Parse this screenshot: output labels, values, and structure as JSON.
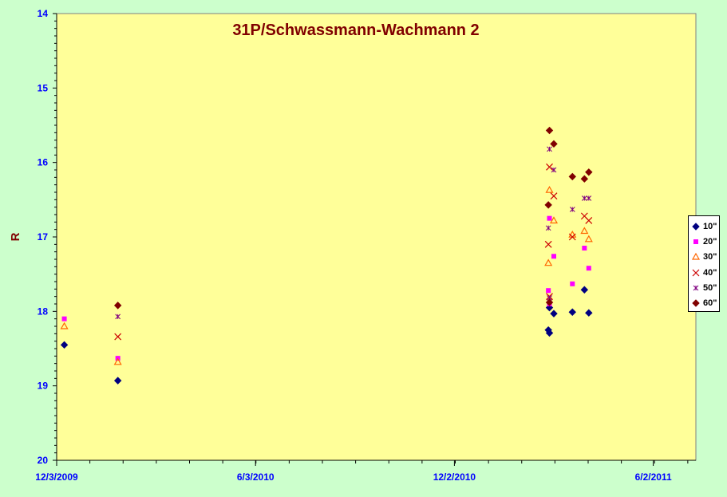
{
  "chart_data": {
    "type": "scatter",
    "title": "31P/Schwassmann-Wachmann 2",
    "xlabel": "",
    "ylabel": "R",
    "x_axis": "date",
    "xlim": [
      "2009-12-03",
      "2011-07-11"
    ],
    "x_ticks": [
      "12/3/2009",
      "6/3/2010",
      "12/2/2010",
      "6/2/2011"
    ],
    "ylim": [
      14,
      20
    ],
    "y_inverted": true,
    "y_ticks": [
      "14",
      "15",
      "16",
      "17",
      "18",
      "19",
      "20"
    ],
    "grid": false,
    "background_color": "#ffff99",
    "outer_background_color": "#ccffcc",
    "legend_position": "right",
    "series": [
      {
        "name": "10\"",
        "marker": "diamond",
        "color": "#000080",
        "points": [
          [
            "2009-12-10",
            18.45
          ],
          [
            "2010-01-28",
            18.93
          ],
          [
            "2011-02-26",
            18.25
          ],
          [
            "2011-02-27",
            18.29
          ],
          [
            "2011-02-27",
            17.95
          ],
          [
            "2011-03-03",
            18.03
          ],
          [
            "2011-03-20",
            18.01
          ],
          [
            "2011-03-31",
            17.71
          ],
          [
            "2011-04-04",
            18.02
          ]
        ]
      },
      {
        "name": "20\"",
        "marker": "square",
        "color": "#ff00ff",
        "points": [
          [
            "2009-12-10",
            18.1
          ],
          [
            "2010-01-28",
            18.63
          ],
          [
            "2011-02-26",
            17.72
          ],
          [
            "2011-02-27",
            16.75
          ],
          [
            "2011-02-27",
            17.9
          ],
          [
            "2011-03-03",
            17.26
          ],
          [
            "2011-03-20",
            17.63
          ],
          [
            "2011-03-31",
            17.15
          ],
          [
            "2011-04-04",
            17.42
          ]
        ]
      },
      {
        "name": "30\"",
        "marker": "triangle",
        "color": "#ff6600",
        "points": [
          [
            "2009-12-10",
            18.2
          ],
          [
            "2010-01-28",
            18.68
          ],
          [
            "2011-02-26",
            17.35
          ],
          [
            "2011-02-27",
            16.37
          ],
          [
            "2011-03-03",
            16.78
          ],
          [
            "2011-03-20",
            16.97
          ],
          [
            "2011-03-31",
            16.92
          ],
          [
            "2011-04-04",
            17.03
          ]
        ]
      },
      {
        "name": "40\"",
        "marker": "x",
        "color": "#cc0000",
        "points": [
          [
            "2010-01-28",
            18.34
          ],
          [
            "2011-02-26",
            17.1
          ],
          [
            "2011-02-27",
            16.06
          ],
          [
            "2011-02-27",
            17.8
          ],
          [
            "2011-03-03",
            16.45
          ],
          [
            "2011-03-20",
            17.0
          ],
          [
            "2011-03-31",
            16.72
          ],
          [
            "2011-04-04",
            16.78
          ]
        ]
      },
      {
        "name": "50\"",
        "marker": "star",
        "color": "#800080",
        "points": [
          [
            "2010-01-28",
            18.07
          ],
          [
            "2011-02-26",
            16.88
          ],
          [
            "2011-02-27",
            15.82
          ],
          [
            "2011-02-27",
            17.82
          ],
          [
            "2011-03-03",
            16.1
          ],
          [
            "2011-03-20",
            16.63
          ],
          [
            "2011-03-31",
            16.48
          ],
          [
            "2011-04-04",
            16.48
          ]
        ]
      },
      {
        "name": "60\"",
        "marker": "diamond",
        "color": "#800000",
        "points": [
          [
            "2010-01-28",
            17.92
          ],
          [
            "2011-02-26",
            16.57
          ],
          [
            "2011-02-27",
            15.57
          ],
          [
            "2011-02-27",
            17.88
          ],
          [
            "2011-03-03",
            15.75
          ],
          [
            "2011-03-20",
            16.19
          ],
          [
            "2011-03-31",
            16.22
          ],
          [
            "2011-04-04",
            16.13
          ]
        ]
      }
    ]
  }
}
